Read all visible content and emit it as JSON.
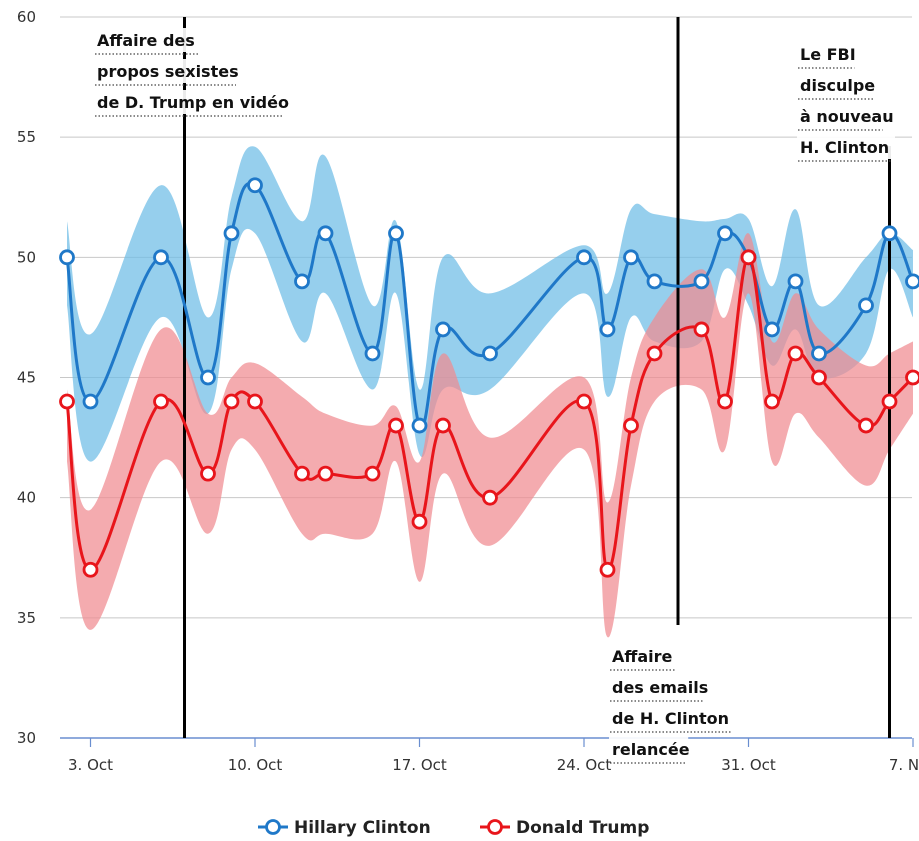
{
  "chart_data": {
    "type": "line",
    "title": "",
    "xlabel": "",
    "ylabel": "",
    "ylim": [
      30,
      60
    ],
    "xlim": [
      "2016-10-02",
      "2016-11-08"
    ],
    "y_ticks": [
      "30",
      "35",
      "40",
      "45",
      "50",
      "55",
      "60"
    ],
    "x_ticks": [
      {
        "date": "2016-10-03",
        "label": "3. Oct"
      },
      {
        "date": "2016-10-10",
        "label": "10. Oct"
      },
      {
        "date": "2016-10-17",
        "label": "17. Oct"
      },
      {
        "date": "2016-10-24",
        "label": "24. Oct"
      },
      {
        "date": "2016-10-31",
        "label": "31. Oct"
      },
      {
        "date": "2016-11-07",
        "label": "7. Nov"
      }
    ],
    "grid": true,
    "legend": "bottom-center",
    "series": [
      {
        "name": "Hillary Clinton",
        "color": "#1f78c8",
        "band_color": "#6ebde6",
        "points": [
          {
            "x": "2016-10-02",
            "y": 50,
            "lo": 48.0,
            "hi": 51.5
          },
          {
            "x": "2016-10-03",
            "y": 44,
            "lo": 41.5,
            "hi": 46.8
          },
          {
            "x": "2016-10-06",
            "y": 50,
            "lo": 47.5,
            "hi": 53.0
          },
          {
            "x": "2016-10-08",
            "y": 45,
            "lo": 43.5,
            "hi": 47.5
          },
          {
            "x": "2016-10-09",
            "y": 51,
            "lo": 49.5,
            "hi": 52.5
          },
          {
            "x": "2016-10-10",
            "y": 53,
            "lo": 51.0,
            "hi": 54.6
          },
          {
            "x": "2016-10-12",
            "y": 49,
            "lo": 46.5,
            "hi": 51.5
          },
          {
            "x": "2016-10-13",
            "y": 51,
            "lo": 48.5,
            "hi": 54.2
          },
          {
            "x": "2016-10-15",
            "y": 46,
            "lo": 44.5,
            "hi": 48.0
          },
          {
            "x": "2016-10-16",
            "y": 51,
            "lo": 48.5,
            "hi": 51.5
          },
          {
            "x": "2016-10-17",
            "y": 43,
            "lo": 41.8,
            "hi": 44.5
          },
          {
            "x": "2016-10-18",
            "y": 47,
            "lo": 44.5,
            "hi": 50.0
          },
          {
            "x": "2016-10-20",
            "y": 46,
            "lo": 44.5,
            "hi": 48.5
          },
          {
            "x": "2016-10-24",
            "y": 50,
            "lo": 48.5,
            "hi": 50.5
          },
          {
            "x": "2016-10-25",
            "y": 47,
            "lo": 44.2,
            "hi": 48.5
          },
          {
            "x": "2016-10-26",
            "y": 50,
            "lo": 47.5,
            "hi": 52.0
          },
          {
            "x": "2016-10-27",
            "y": 49,
            "lo": 46.5,
            "hi": 51.8
          },
          {
            "x": "2016-10-29",
            "y": 49,
            "lo": 46.5,
            "hi": 51.5
          },
          {
            "x": "2016-10-30",
            "y": 51,
            "lo": 49.5,
            "hi": 51.6
          },
          {
            "x": "2016-10-31",
            "y": 50,
            "lo": 48.0,
            "hi": 51.6
          },
          {
            "x": "2016-11-01",
            "y": 47,
            "lo": 45.5,
            "hi": 48.8
          },
          {
            "x": "2016-11-02",
            "y": 49,
            "lo": 47.0,
            "hi": 52.0
          },
          {
            "x": "2016-11-03",
            "y": 46,
            "lo": 45.0,
            "hi": 48.0
          },
          {
            "x": "2016-11-05",
            "y": 48,
            "lo": 46.0,
            "hi": 50.0
          },
          {
            "x": "2016-11-06",
            "y": 51,
            "lo": 49.5,
            "hi": 51.0
          },
          {
            "x": "2016-11-07",
            "y": 49,
            "lo": 47.5,
            "hi": 50.3
          }
        ]
      },
      {
        "name": "Donald Trump",
        "color": "#e8151b",
        "band_color": "#f08a90",
        "points": [
          {
            "x": "2016-10-02",
            "y": 44,
            "lo": 41.5,
            "hi": 44.5
          },
          {
            "x": "2016-10-03",
            "y": 37,
            "lo": 34.5,
            "hi": 39.5
          },
          {
            "x": "2016-10-06",
            "y": 44,
            "lo": 41.5,
            "hi": 47.0
          },
          {
            "x": "2016-10-08",
            "y": 41,
            "lo": 38.5,
            "hi": 43.5
          },
          {
            "x": "2016-10-09",
            "y": 44,
            "lo": 42.0,
            "hi": 45.0
          },
          {
            "x": "2016-10-10",
            "y": 44,
            "lo": 42.0,
            "hi": 45.6
          },
          {
            "x": "2016-10-12",
            "y": 41,
            "lo": 38.5,
            "hi": 44.2
          },
          {
            "x": "2016-10-13",
            "y": 41,
            "lo": 38.5,
            "hi": 43.5
          },
          {
            "x": "2016-10-15",
            "y": 41,
            "lo": 38.5,
            "hi": 43.0
          },
          {
            "x": "2016-10-16",
            "y": 43,
            "lo": 41.5,
            "hi": 43.8
          },
          {
            "x": "2016-10-17",
            "y": 39,
            "lo": 36.5,
            "hi": 41.5
          },
          {
            "x": "2016-10-18",
            "y": 43,
            "lo": 41.0,
            "hi": 46.0
          },
          {
            "x": "2016-10-20",
            "y": 40,
            "lo": 38.0,
            "hi": 42.5
          },
          {
            "x": "2016-10-24",
            "y": 44,
            "lo": 42.0,
            "hi": 45.0
          },
          {
            "x": "2016-10-25",
            "y": 37,
            "lo": 34.2,
            "hi": 39.8
          },
          {
            "x": "2016-10-26",
            "y": 43,
            "lo": 40.5,
            "hi": 45.0
          },
          {
            "x": "2016-10-27",
            "y": 46,
            "lo": 44.0,
            "hi": 47.5
          },
          {
            "x": "2016-10-29",
            "y": 47,
            "lo": 44.5,
            "hi": 49.5
          },
          {
            "x": "2016-10-30",
            "y": 44,
            "lo": 42.0,
            "hi": 47.5
          },
          {
            "x": "2016-10-31",
            "y": 50,
            "lo": 48.5,
            "hi": 51.0
          },
          {
            "x": "2016-11-01",
            "y": 44,
            "lo": 41.5,
            "hi": 46.5
          },
          {
            "x": "2016-11-02",
            "y": 46,
            "lo": 43.5,
            "hi": 48.5
          },
          {
            "x": "2016-11-03",
            "y": 45,
            "lo": 42.5,
            "hi": 47.0
          },
          {
            "x": "2016-11-05",
            "y": 43,
            "lo": 40.5,
            "hi": 45.5
          },
          {
            "x": "2016-11-06",
            "y": 44,
            "lo": 42.0,
            "hi": 46.0
          },
          {
            "x": "2016-11-07",
            "y": 45,
            "lo": 43.5,
            "hi": 46.5
          }
        ]
      }
    ],
    "annotations": [
      {
        "x": "2016-10-07",
        "lines": [
          "Affaire des",
          "propos sexistes",
          "de D. Trump en vidéo"
        ],
        "position": "top"
      },
      {
        "x": "2016-10-28",
        "lines": [
          "Affaire",
          "des emails",
          "de H. Clinton",
          "relancée"
        ],
        "position": "bottom"
      },
      {
        "x": "2016-11-06",
        "lines": [
          "Le FBI",
          "disculpe",
          "à nouveau",
          "H. Clinton"
        ],
        "position": "top"
      }
    ]
  }
}
